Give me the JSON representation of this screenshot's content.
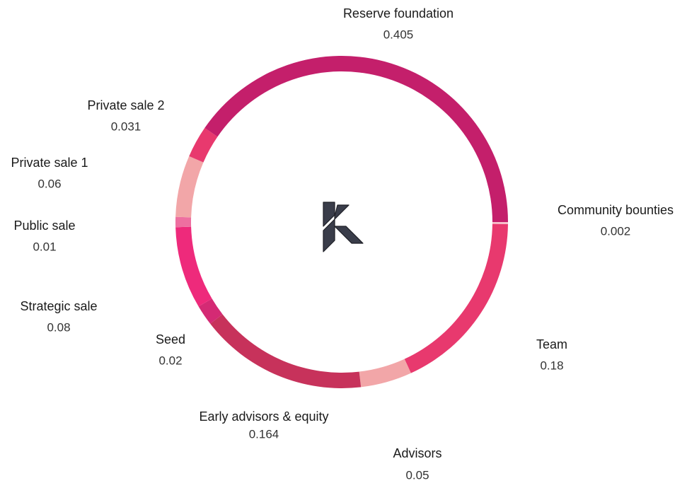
{
  "chart_data": {
    "type": "donut",
    "categories": [
      "Community bounties",
      "Team",
      "Advisors",
      "Early advisors & equity",
      "Seed",
      "Strategic sale",
      "Public sale",
      "Private sale 1",
      "Private sale 2",
      "Reserve foundation"
    ],
    "values": [
      0.002,
      0.18,
      0.05,
      0.164,
      0.02,
      0.08,
      0.01,
      0.06,
      0.031,
      0.405
    ],
    "colors": [
      "#f6c3cc",
      "#e8396e",
      "#f2a6a8",
      "#c7325b",
      "#d42a74",
      "#ee2a7b",
      "#ee6fa0",
      "#f2a6a8",
      "#e8396e",
      "#c41f6b"
    ]
  }
}
